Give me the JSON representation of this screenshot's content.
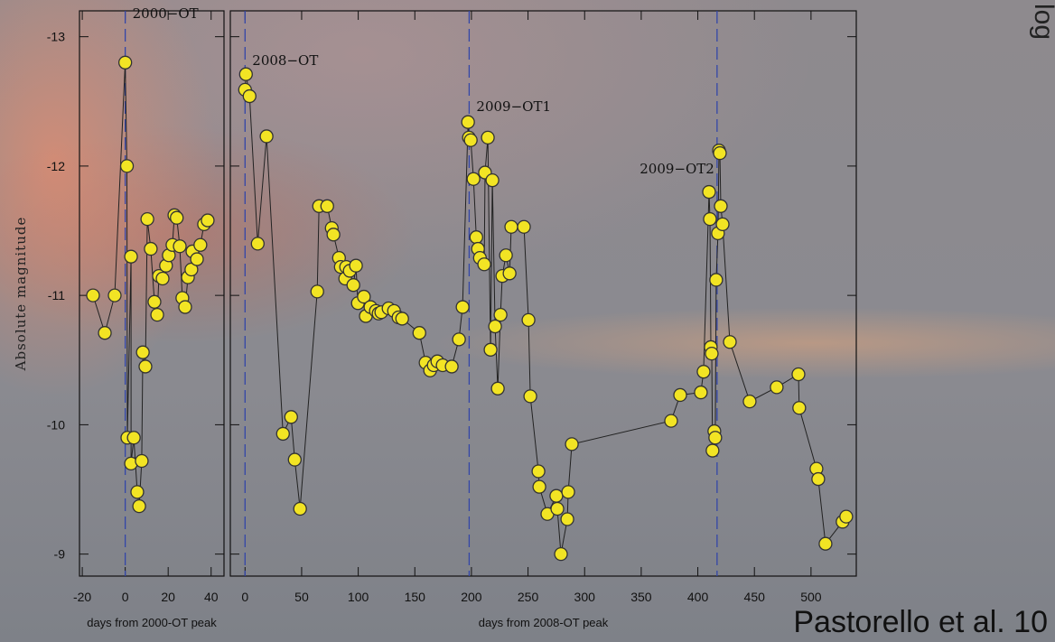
{
  "slide": {
    "corner_text": "log",
    "citation": "Pastorello et al. 10"
  },
  "chart_data": [
    {
      "type": "line",
      "xlabel": "days from 2000-OT peak",
      "ylabel": "Absolute magnitude",
      "xlim": [
        -21.3,
        46
      ],
      "ylim": [
        -8.83,
        -13.2
      ],
      "xticks": [
        -20,
        0,
        20,
        40
      ],
      "yticks": [
        -13,
        -12,
        -11,
        -10,
        -9
      ],
      "color": "#f2e424",
      "line_color": "#222222",
      "event_color": "#3346a8",
      "events": [
        {
          "x": 0,
          "label": "2000−OT"
        }
      ],
      "x": [
        -15,
        -9.5,
        -4.9,
        0,
        0.8,
        1,
        2.7,
        2.7,
        4,
        5.6,
        6.5,
        7.7,
        8.2,
        9.4,
        10.3,
        11.9,
        13.6,
        14.9,
        15.7,
        17.4,
        19,
        20.3,
        22,
        22.9,
        24,
        25.4,
        26.6,
        27.9,
        29.2,
        30.8,
        31.3,
        33.4,
        35,
        36.7,
        38.4
      ],
      "values": [
        -11.0,
        -10.71,
        -11.0,
        -12.8,
        -12.0,
        -9.9,
        -11.3,
        -9.7,
        -9.9,
        -9.48,
        -9.37,
        -9.72,
        -10.56,
        -10.45,
        -11.59,
        -11.36,
        -10.95,
        -10.85,
        -11.15,
        -11.13,
        -11.23,
        -11.31,
        -11.39,
        -11.62,
        -11.6,
        -11.38,
        -10.98,
        -10.91,
        -11.14,
        -11.2,
        -11.34,
        -11.28,
        -11.39,
        -11.55,
        -11.58
      ]
    },
    {
      "type": "line",
      "xlabel": "days from 2008-OT peak",
      "xlim": [
        -13,
        540
      ],
      "ylim": [
        -8.83,
        -13.2
      ],
      "xticks": [
        0,
        50,
        100,
        150,
        200,
        250,
        300,
        350,
        400,
        450,
        500
      ],
      "yticks": [
        -13,
        -12,
        -11,
        -10,
        -9
      ],
      "color": "#f2e424",
      "line_color": "#222222",
      "event_color": "#3346a8",
      "events": [
        {
          "x": 0,
          "label": "2008−OT"
        },
        {
          "x": 198,
          "label": "2009−OT1"
        },
        {
          "x": 417,
          "label": "2009−OT2"
        }
      ],
      "x": [
        0,
        0.8,
        4,
        11.2,
        19,
        33.5,
        40.7,
        43.9,
        48.6,
        63.8,
        65.4,
        72.6,
        76.6,
        78.1,
        83,
        84.6,
        88.5,
        89.3,
        92.5,
        95.7,
        98,
        99.7,
        105,
        106.7,
        110.8,
        115.6,
        118,
        120.4,
        126.8,
        131.6,
        135.6,
        138.8,
        154,
        159.5,
        163.5,
        166.7,
        169.9,
        174.6,
        182.6,
        189,
        192.2,
        197,
        197.8,
        199.4,
        201.8,
        204.3,
        205.8,
        207.5,
        211.3,
        212,
        214.5,
        216.9,
        218.5,
        220.9,
        223.3,
        225.7,
        227.3,
        230.5,
        233.7,
        235.2,
        246.4,
        250.4,
        252,
        259.2,
        260,
        267.1,
        275,
        275.9,
        279.1,
        284.7,
        285.5,
        288.7,
        376.4,
        384.4,
        402.7,
        405.1,
        409.9,
        410.7,
        411.5,
        412.3,
        413,
        414.6,
        415.4,
        416.2,
        417.8,
        418.7,
        419.5,
        420.3,
        421.9,
        428.3,
        445.8,
        469.7,
        488.9,
        489.6,
        504.8,
        506.4,
        512.8,
        527.9,
        531.1
      ],
      "values": [
        -12.59,
        -12.71,
        -12.54,
        -11.4,
        -12.23,
        -9.93,
        -10.06,
        -9.73,
        -9.35,
        -11.03,
        -11.69,
        -11.69,
        -11.52,
        -11.47,
        -11.29,
        -11.22,
        -11.13,
        -11.22,
        -11.19,
        -11.08,
        -11.23,
        -10.94,
        -10.99,
        -10.84,
        -10.91,
        -10.88,
        -10.86,
        -10.87,
        -10.9,
        -10.88,
        -10.83,
        -10.82,
        -10.71,
        -10.48,
        -10.42,
        -10.46,
        -10.49,
        -10.46,
        -10.45,
        -10.66,
        -10.91,
        -12.34,
        -12.22,
        -12.2,
        -11.9,
        -11.45,
        -11.36,
        -11.29,
        -11.24,
        -11.95,
        -12.22,
        -10.58,
        -11.89,
        -10.76,
        -10.28,
        -10.85,
        -11.15,
        -11.31,
        -11.17,
        -11.53,
        -11.53,
        -10.81,
        -10.22,
        -9.64,
        -9.52,
        -9.31,
        -9.45,
        -9.35,
        -9.0,
        -9.27,
        -9.48,
        -9.85,
        -10.03,
        -10.23,
        -10.25,
        -10.41,
        -11.8,
        -11.59,
        -10.6,
        -10.55,
        -9.8,
        -9.95,
        -9.9,
        -11.12,
        -11.48,
        -12.12,
        -12.1,
        -11.69,
        -11.55,
        -10.64,
        -10.18,
        -10.29,
        -10.39,
        -10.13,
        -9.66,
        -9.58,
        -9.08,
        -9.25,
        -9.29
      ]
    }
  ]
}
